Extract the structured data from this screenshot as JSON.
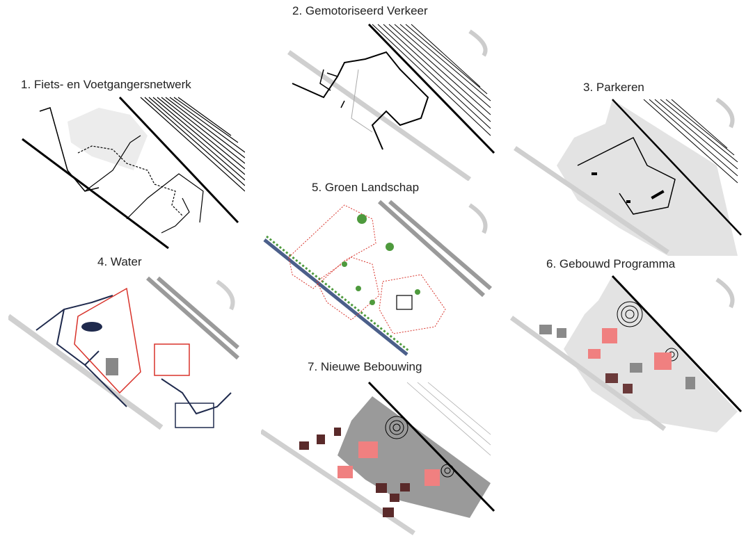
{
  "panels": [
    {
      "id": "p1",
      "title": "1. Fiets- en Voetgangersnetwerk"
    },
    {
      "id": "p2",
      "title": "2. Gemotoriseerd Verkeer"
    },
    {
      "id": "p3",
      "title": "3. Parkeren"
    },
    {
      "id": "p4",
      "title": "4. Water"
    },
    {
      "id": "p5",
      "title": "5. Groen Landschap"
    },
    {
      "id": "p6",
      "title": "6. Gebouwd Programma"
    },
    {
      "id": "p7",
      "title": "7. Nieuwe Bebouwing"
    }
  ],
  "colors": {
    "road": "#000000",
    "rail_grey": "#9a9a9a",
    "ground": "#e6e6e6",
    "water": "#1f2a4d",
    "boundary_red": "#d8322a",
    "green": "#4e9a3d",
    "building_pink": "#f08080",
    "building_dark": "#5a2a2a",
    "building_grey": "#8a8a8a"
  }
}
